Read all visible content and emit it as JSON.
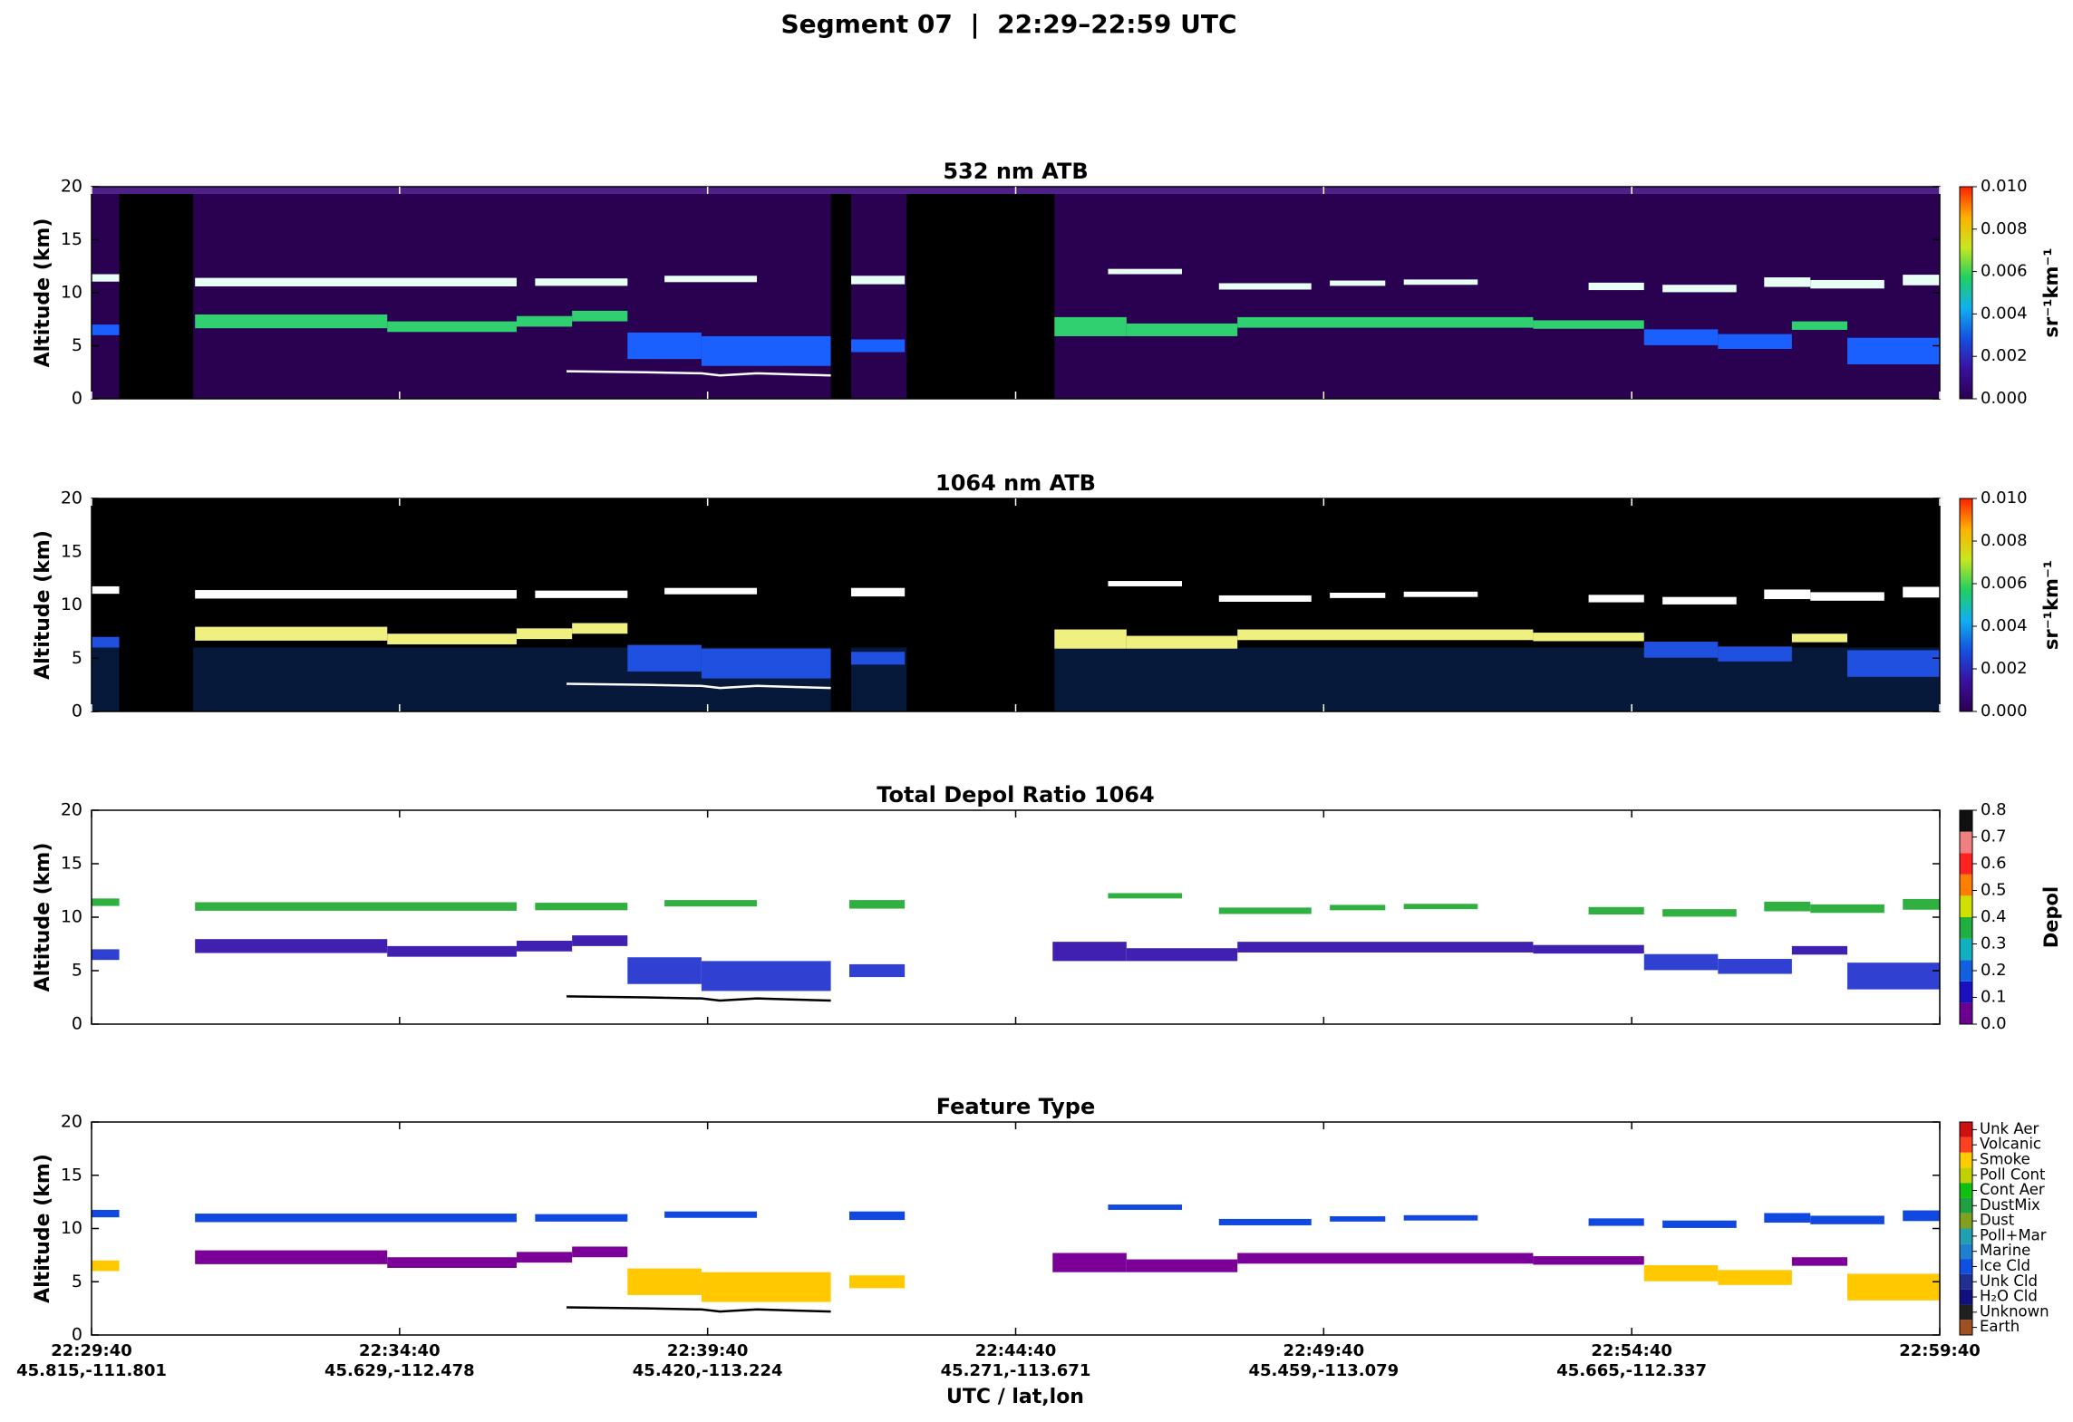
{
  "title": "Segment 07  |  22:29–22:59 UTC",
  "xlabel": "UTC / lat,lon",
  "xtick_labels": [
    [
      "22:29:40",
      "45.815,-111.801"
    ],
    [
      "22:34:40",
      "45.629,-112.478"
    ],
    [
      "22:39:40",
      "45.420,-113.224"
    ],
    [
      "22:44:40",
      "45.271,-113.671"
    ],
    [
      "22:49:40",
      "45.459,-113.079"
    ],
    [
      "22:54:40",
      "45.665,-112.337"
    ],
    [
      "22:59:40",
      null
    ]
  ],
  "chart_data": [
    {
      "type": "curtain",
      "title": "532 nm ATB",
      "ylabel": "Altitude (km)",
      "ylim": [
        0,
        20
      ],
      "yticks": [
        0,
        5,
        10,
        15,
        20
      ],
      "background": "#2a0050",
      "colorbar": {
        "label": "sr⁻¹km⁻¹",
        "lim": [
          0,
          0.01
        ],
        "ticks": [
          {
            "value": 0,
            "label": "0.000"
          },
          {
            "value": 0.002,
            "label": "0.002"
          },
          {
            "value": 0.004,
            "label": "0.004"
          },
          {
            "value": 0.006,
            "label": "0.006"
          },
          {
            "value": 0.008,
            "label": "0.008"
          },
          {
            "value": 0.01,
            "label": "0.010"
          }
        ],
        "colormap": [
          "#2a0050",
          "#3a10a0",
          "#1450e0",
          "#10b0f0",
          "#20d060",
          "#c8e820",
          "#ffb000",
          "#ff2000"
        ]
      }
    },
    {
      "type": "curtain",
      "title": "1064 nm ATB",
      "ylabel": "Altitude (km)",
      "ylim": [
        0,
        20
      ],
      "yticks": [
        0,
        5,
        10,
        15,
        20
      ],
      "background": "#000000",
      "colorbar": {
        "label": "sr⁻¹km⁻¹",
        "lim": [
          0,
          0.01
        ],
        "ticks": [
          {
            "value": 0,
            "label": "0.000"
          },
          {
            "value": 0.002,
            "label": "0.002"
          },
          {
            "value": 0.004,
            "label": "0.004"
          },
          {
            "value": 0.006,
            "label": "0.006"
          },
          {
            "value": 0.008,
            "label": "0.008"
          },
          {
            "value": 0.01,
            "label": "0.010"
          }
        ],
        "colormap": [
          "#2a0050",
          "#3a10a0",
          "#1450e0",
          "#10b0f0",
          "#20d060",
          "#c8e820",
          "#ffb000",
          "#ff2000"
        ]
      }
    },
    {
      "type": "curtain",
      "title": "Total Depol Ratio 1064",
      "ylabel": "Altitude (km)",
      "ylim": [
        0,
        20
      ],
      "yticks": [
        0,
        5,
        10,
        15,
        20
      ],
      "background": "#ffffff",
      "colorbar": {
        "label": "Depol",
        "lim": [
          0,
          0.8
        ],
        "ticks": [
          {
            "value": 0,
            "label": "0.0"
          },
          {
            "value": 0.1,
            "label": "0.1"
          },
          {
            "value": 0.2,
            "label": "0.2"
          },
          {
            "value": 0.3,
            "label": "0.3"
          },
          {
            "value": 0.4,
            "label": "0.4"
          },
          {
            "value": 0.5,
            "label": "0.5"
          },
          {
            "value": 0.6,
            "label": "0.6"
          },
          {
            "value": 0.7,
            "label": "0.7"
          },
          {
            "value": 0.8,
            "label": "0.8"
          }
        ],
        "colors": [
          "#6a0090",
          "#1a10c0",
          "#1060e0",
          "#10b0c0",
          "#20b040",
          "#d0e000",
          "#ff8000",
          "#ff2020",
          "#f08080",
          "#101010"
        ]
      }
    },
    {
      "type": "curtain",
      "title": "Feature Type",
      "ylabel": "Altitude (km)",
      "ylim": [
        0,
        20
      ],
      "yticks": [
        0,
        5,
        10,
        15,
        20
      ],
      "background": "#ffffff",
      "colorbar": {
        "categories": [
          "Earth",
          "Unknown",
          "H₂O Cld",
          "Unk Cld",
          "Ice Cld",
          "Marine",
          "Poll+Mar",
          "Dust",
          "DustMix",
          "Cont Aer",
          "Poll Cont",
          "Smoke",
          "Volcanic",
          "Unk Aer"
        ],
        "colors": [
          "#a05020",
          "#202020",
          "#101080",
          "#203090",
          "#1050e0",
          "#2080d0",
          "#20a0b0",
          "#80a020",
          "#20a040",
          "#10c010",
          "#c0d000",
          "#ffcc00",
          "#ff4020",
          "#d01010"
        ]
      }
    }
  ]
}
